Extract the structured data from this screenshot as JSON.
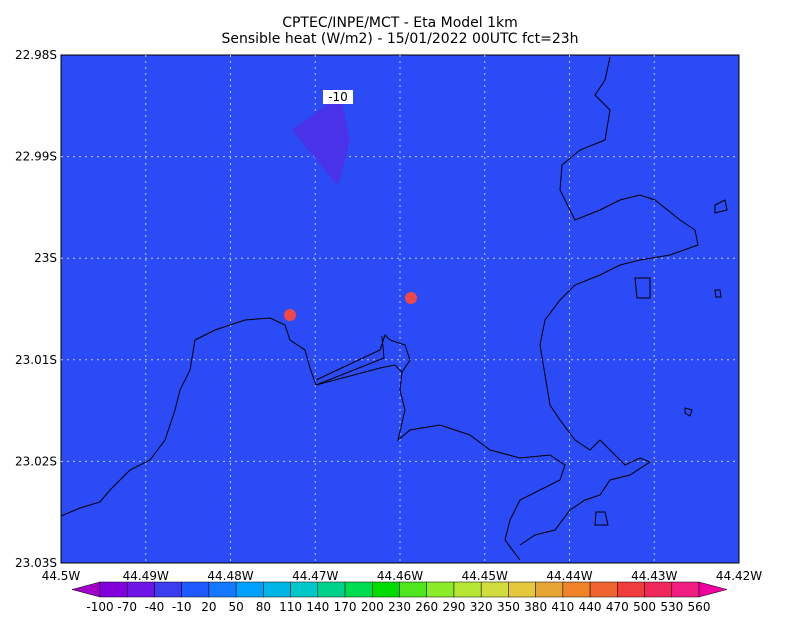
{
  "header": {
    "line1": "CPTEC/INPE/MCT -  Eta Model 1km",
    "line2": "Sensible heat (W/m2) - 15/01/2022 00UTC fct=23h"
  },
  "map": {
    "lat_labels": [
      "22.98S",
      "22.99S",
      "23S",
      "23.01S",
      "23.02S",
      "23.03S"
    ],
    "lon_labels": [
      "44.5W",
      "44.49W",
      "44.48W",
      "44.47W",
      "44.46W",
      "44.45W",
      "44.44W",
      "44.43W",
      "44.42W"
    ],
    "contour_label": "-10"
  },
  "colorbar": {
    "labels": [
      -100,
      -70,
      -40,
      -10,
      20,
      50,
      80,
      110,
      140,
      170,
      200,
      230,
      260,
      290,
      320,
      350,
      380,
      410,
      440,
      470,
      500,
      530,
      560
    ],
    "colors": [
      "#a000c8",
      "#8200dc",
      "#6e14e6",
      "#3c3cf0",
      "#1e5aff",
      "#1478ff",
      "#00a0ff",
      "#00b4e6",
      "#00c8c8",
      "#00d28c",
      "#00dc50",
      "#00dc00",
      "#50e61e",
      "#8ceb28",
      "#b4e632",
      "#d2dc3c",
      "#e6c83c",
      "#e6a532",
      "#f08228",
      "#f0642d",
      "#f03c3c",
      "#f0285a",
      "#f01e82",
      "#f000a0"
    ]
  }
}
